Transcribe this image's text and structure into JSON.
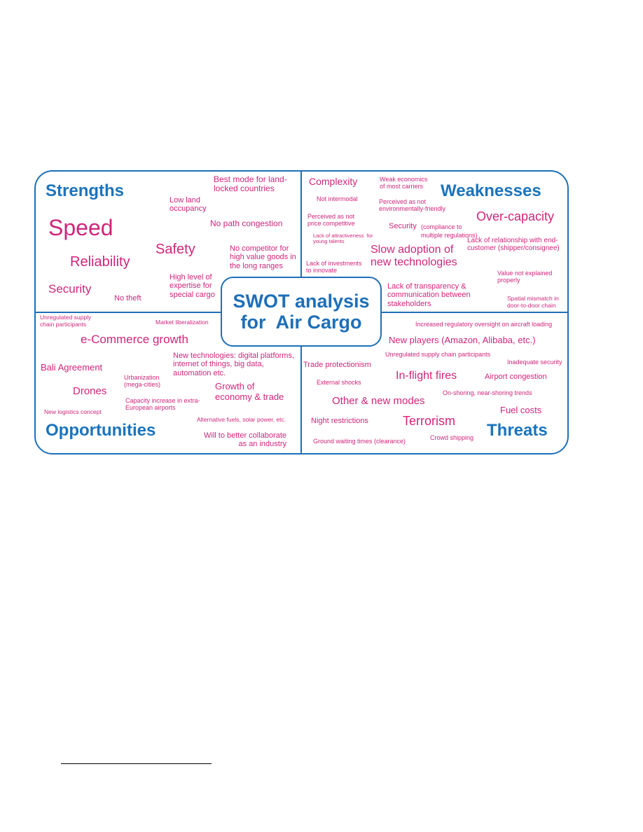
{
  "colors": {
    "frame": "#1e6fb8",
    "heading": "#1b74bd",
    "item": "#d0257a"
  },
  "center": {
    "line1": "SWOT analysis",
    "line2": "for  Air Cargo"
  },
  "headings": {
    "strengths": "Strengths",
    "weaknesses": "Weaknesses",
    "opportunities": "Opportunities",
    "threats": "Threats"
  },
  "strengths": {
    "speed": "Speed",
    "reliability": "Reliability",
    "security": "Security",
    "no_theft": "No theft",
    "low_land": "Low land\noccupancy",
    "safety": "Safety",
    "high_level": "High level of\nexpertise for\nspecial cargo",
    "best_mode": "Best mode for land-\nlocked countries",
    "no_path": "No path congestion",
    "no_competitor": "No competitor for\nhigh value goods in\nthe long ranges"
  },
  "weaknesses": {
    "complexity": "Complexity",
    "weak_economics": "Weak economics\nof most carriers",
    "not_intermodal": "Not intermodal",
    "not_env": "Perceived as not\nenvironmentally-friendly",
    "not_price": "Perceived as not\nprice competitive",
    "overcapacity": "Over-capacity",
    "lack_attract": "Lack of attractiveness  for\nyoung talents",
    "security_main": "Security",
    "security_note": "(compliance to\nmultiple regulations)",
    "lack_relationship": "Lack of relationship with end-\ncustomer (shipper/consignee)",
    "slow_adoption": "Slow adoption of\nnew technologies",
    "lack_invest": "Lack of investments\nto innovate",
    "value_not": "Value not explained\nproperly",
    "lack_transparency": "Lack of transparency &\ncommunication between\nstakeholders",
    "spatial": "Spatial mismatch in\ndoor-to-door chain"
  },
  "opportunities": {
    "unregulated": "Unregulated supply\nchain participants",
    "market_lib": "Market liberalization",
    "ecommerce": "e-Commerce growth",
    "new_tech": "New technologies: digital platforms,\ninternet of things, big data,\nautomation etc.",
    "bali": "Bali Agreement",
    "urbanization": "Urbanization\n(mega-cities)",
    "growth": "Growth of\neconomy & trade",
    "drones": "Drones",
    "capacity": "Capacity increase in extra-\nEuropean airports",
    "new_logistics": "New logistics concept",
    "alt_fuels": "Alternative fuels, solar power, etc.",
    "collaborate": "Will to better collaborate\nas an industry"
  },
  "threats": {
    "regulatory": "Increased regulatory oversight on aircraft loading",
    "new_players": "New players (Amazon, Alibaba, etc.)",
    "unregulated": "Unregulated supply chain participants",
    "protectionism": "Trade protectionism",
    "inadequate": "Inadequate security",
    "inflight": "In-flight fires",
    "airport_cong": "Airport congestion",
    "external": "External shocks",
    "onshoring": "On-shoring, near-shoring trends",
    "other_modes": "Other & new modes",
    "fuel": "Fuel costs",
    "night": "Night restrictions",
    "terrorism": "Terrorism",
    "ground": "Ground waiting times (clearance)",
    "crowd": "Crowd shipping"
  }
}
